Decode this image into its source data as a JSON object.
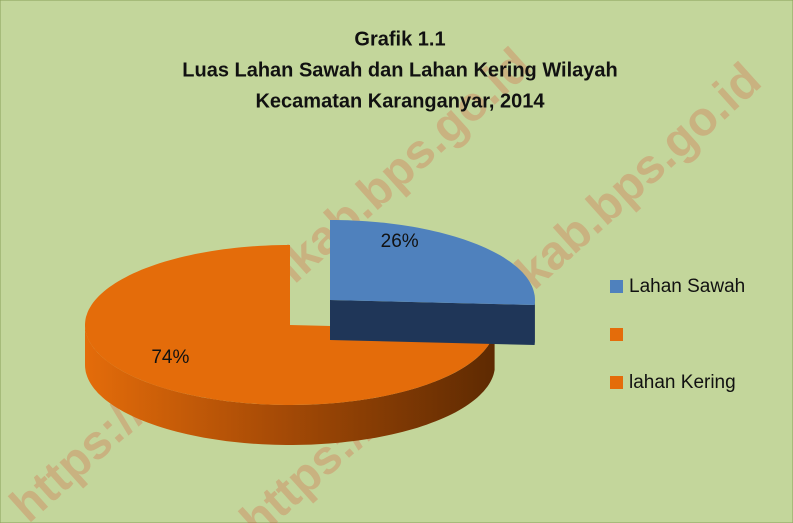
{
  "chart_data": {
    "type": "pie3d",
    "title": [
      "Grafik 1.1",
      "Luas Lahan Sawah dan Lahan Kering Wilayah",
      "Kecamatan Karanganyar, 2014"
    ],
    "categories": [
      "Lahan Sawah",
      null,
      "lahan Kering"
    ],
    "values": [
      26,
      0,
      74
    ],
    "value_labels": [
      "26%",
      null,
      "74%"
    ],
    "colors": [
      "#4f81bd",
      "#e46c0a",
      "#e46c0a"
    ],
    "legend": "right",
    "watermark": "https://kebumenkab.bps.go.id"
  }
}
